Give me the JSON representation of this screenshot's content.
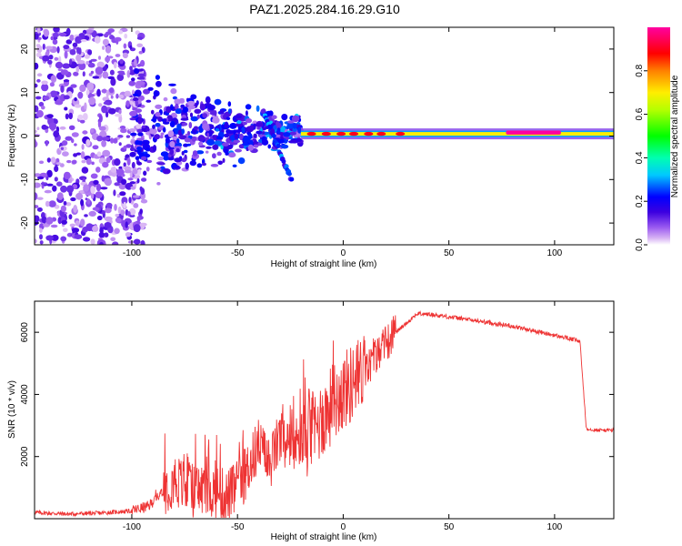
{
  "chart_data": [
    {
      "type": "heatmap",
      "title": "PAZ1.2025.284.16.29.G10",
      "xlabel": "Height of straight line (km)",
      "ylabel": "Frequency (Hz)",
      "xlim": [
        -146,
        128
      ],
      "ylim": [
        -25,
        25
      ],
      "xticks": [
        -100,
        -50,
        0,
        50,
        100
      ],
      "yticks": [
        -20,
        -10,
        0,
        10,
        20
      ],
      "colorbar": {
        "label": "Normalized spectral amplitude",
        "range": [
          0,
          1
        ],
        "ticks": [
          "0.0",
          "0.2",
          "0.4",
          "0.6",
          "0.8"
        ],
        "colormap": "rainbow (magenta-violet-blue-cyan-green-yellow-red-magenta)"
      },
      "features": [
        {
          "name": "scattered noise",
          "x_range": [
            -146,
            -100
          ],
          "freq_range": [
            -25,
            25
          ],
          "amplitude": 0.05
        },
        {
          "name": "transition noise",
          "x_range": [
            -100,
            -20
          ],
          "freq_range": [
            -10,
            8
          ],
          "amplitude": 0.15
        },
        {
          "name": "tone ridge",
          "x_range": [
            -20,
            128
          ],
          "freq": 0.5,
          "amplitude": 0.7
        },
        {
          "name": "peak segment",
          "x_range": [
            77,
            103
          ],
          "freq": 0.8,
          "amplitude": 1.0
        }
      ]
    },
    {
      "type": "line",
      "title": "",
      "xlabel": "Height of straight line (km)",
      "ylabel": "SNR (10 * v/v)",
      "xlim": [
        -146,
        128
      ],
      "ylim": [
        0,
        7000
      ],
      "xticks": [
        -100,
        -50,
        0,
        50,
        100
      ],
      "yticks": [
        2000,
        4000,
        6000
      ],
      "color": "#ee3333",
      "series": [
        {
          "name": "SNR",
          "x": [
            -146,
            -130,
            -115,
            -100,
            -92,
            -85,
            -80,
            -75,
            -70,
            -65,
            -60,
            -55,
            -50,
            -45,
            -40,
            -35,
            -30,
            -25,
            -21,
            -15,
            -10,
            -5,
            0,
            5,
            10,
            15,
            20,
            25,
            30,
            35,
            40,
            50,
            60,
            70,
            80,
            90,
            100,
            110,
            112,
            115,
            120,
            128
          ],
          "values": [
            200,
            150,
            180,
            250,
            400,
            950,
            1300,
            1000,
            900,
            950,
            850,
            700,
            1000,
            1600,
            2400,
            1700,
            2600,
            2200,
            2500,
            2700,
            3200,
            3700,
            4100,
            4400,
            4700,
            5200,
            5600,
            6000,
            6300,
            6600,
            6580,
            6500,
            6400,
            6300,
            6200,
            6050,
            5900,
            5750,
            5700,
            2900,
            2850,
            2850
          ]
        }
      ]
    }
  ]
}
